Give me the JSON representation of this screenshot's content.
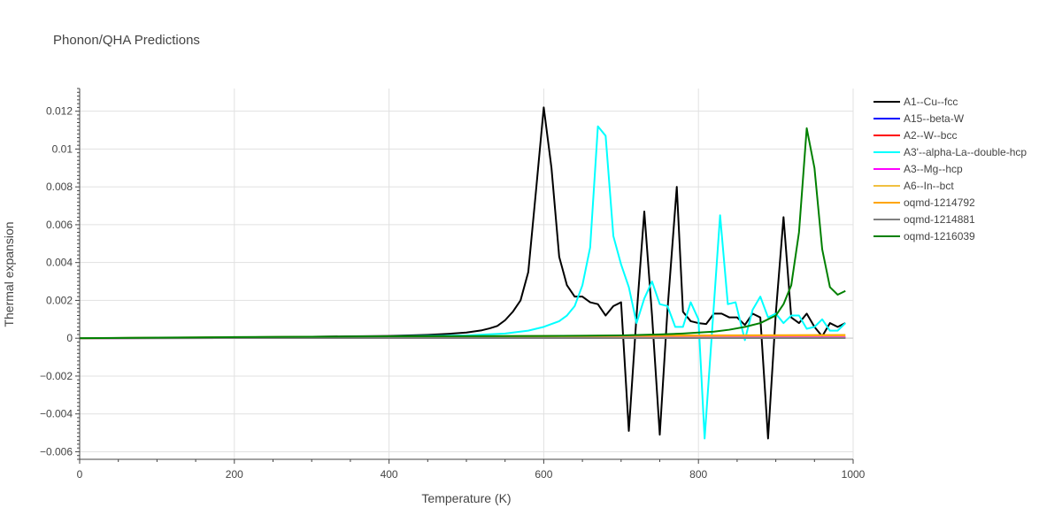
{
  "chart_data": {
    "type": "line",
    "title": "Phonon/QHA Predictions",
    "xlabel": "Temperature (K)",
    "ylabel": "Thermal expansion",
    "xlim": [
      0,
      1000
    ],
    "ylim": [
      -0.0064,
      0.0132
    ],
    "x_ticks": [
      0,
      200,
      400,
      600,
      800,
      1000
    ],
    "x_tick_labels": [
      "0",
      "200",
      "400",
      "600",
      "800",
      "1000"
    ],
    "y_ticks": [
      -0.006,
      -0.004,
      -0.002,
      0,
      0.002,
      0.004,
      0.006,
      0.008,
      0.01,
      0.012
    ],
    "y_tick_labels": [
      "−0.006",
      "−0.004",
      "−0.002",
      "0",
      "0.002",
      "0.004",
      "0.006",
      "0.008",
      "0.01",
      "0.012"
    ],
    "grid": true,
    "legend_position": "right",
    "series": [
      {
        "name": "A1--Cu--fcc",
        "color": "#000000",
        "x": [
          0,
          50,
          100,
          150,
          200,
          250,
          300,
          350,
          400,
          450,
          480,
          500,
          520,
          530,
          540,
          550,
          560,
          570,
          580,
          590,
          600,
          610,
          620,
          630,
          640,
          650,
          660,
          670,
          680,
          690,
          700,
          710,
          720,
          730,
          740,
          750,
          760,
          772,
          780,
          790,
          800,
          810,
          820,
          830,
          840,
          850,
          860,
          870,
          880,
          890,
          900,
          910,
          920,
          930,
          940,
          950,
          960,
          970,
          980,
          990
        ],
        "values": [
          0,
          1e-05,
          2e-05,
          3e-05,
          5e-05,
          6e-05,
          8e-05,
          0.0001,
          0.00012,
          0.00018,
          0.00024,
          0.0003,
          0.00042,
          0.00052,
          0.00065,
          0.00095,
          0.0014,
          0.002,
          0.0035,
          0.0078,
          0.0122,
          0.009,
          0.0043,
          0.0028,
          0.0022,
          0.0022,
          0.0019,
          0.0018,
          0.0012,
          0.0017,
          0.0019,
          -0.0049,
          0.0012,
          0.0067,
          0.0012,
          -0.0051,
          0.0015,
          0.008,
          0.0014,
          0.0009,
          0.0008,
          0.00075,
          0.0013,
          0.0013,
          0.0011,
          0.0011,
          0.0007,
          0.0013,
          0.0011,
          -0.0053,
          0.0013,
          0.0064,
          0.0011,
          0.0008,
          0.0013,
          0.0006,
          0.0001,
          0.0008,
          0.0006,
          0.0008
        ]
      },
      {
        "name": "A15--beta-W",
        "color": "#0000ff",
        "x": [
          0,
          200,
          400,
          600,
          800,
          990
        ],
        "values": [
          0,
          1e-05,
          2e-05,
          3e-05,
          3e-05,
          3e-05
        ]
      },
      {
        "name": "A2--W--bcc",
        "color": "#ff0000",
        "x": [
          0,
          200,
          400,
          600,
          800,
          990
        ],
        "values": [
          0,
          1e-05,
          2e-05,
          2e-05,
          3e-05,
          3e-05
        ]
      },
      {
        "name": "A3'--alpha-La--double-hcp",
        "color": "#00ffff",
        "x": [
          0,
          100,
          200,
          300,
          400,
          500,
          550,
          580,
          600,
          620,
          630,
          640,
          650,
          660,
          670,
          680,
          690,
          700,
          710,
          720,
          730,
          740,
          750,
          760,
          770,
          780,
          790,
          800,
          808,
          818,
          828,
          838,
          848,
          860,
          870,
          880,
          890,
          900,
          910,
          920,
          930,
          940,
          950,
          960,
          970,
          980,
          990
        ],
        "values": [
          0,
          2e-05,
          4e-05,
          7e-05,
          0.0001,
          0.00015,
          0.00025,
          0.0004,
          0.0006,
          0.0009,
          0.0012,
          0.0017,
          0.0028,
          0.0048,
          0.0112,
          0.0107,
          0.0054,
          0.0039,
          0.0027,
          0.0008,
          0.0021,
          0.003,
          0.0018,
          0.0017,
          0.0006,
          0.0006,
          0.0019,
          0.001,
          -0.0053,
          0.0006,
          0.0065,
          0.0018,
          0.0019,
          -0.0001,
          0.0015,
          0.0022,
          0.0011,
          0.0013,
          0.0008,
          0.0012,
          0.0012,
          0.0005,
          0.0006,
          0.001,
          0.0004,
          0.0004,
          0.0008
        ]
      },
      {
        "name": "A3--Mg--hcp",
        "color": "#ff00ff",
        "x": [
          0,
          200,
          400,
          600,
          800,
          990
        ],
        "values": [
          0,
          2e-05,
          3e-05,
          4e-05,
          5e-05,
          5e-05
        ]
      },
      {
        "name": "A6--In--bct",
        "color": "#f0c040",
        "x": [
          0,
          200,
          400,
          600,
          800,
          990
        ],
        "values": [
          0,
          4e-05,
          7e-05,
          0.0001,
          0.00012,
          0.00014
        ]
      },
      {
        "name": "oqmd-1214792",
        "color": "#ffa500",
        "x": [
          0,
          200,
          400,
          600,
          800,
          990
        ],
        "values": [
          0,
          5e-05,
          9e-05,
          0.00012,
          0.00015,
          0.00017
        ]
      },
      {
        "name": "oqmd-1214881",
        "color": "#808080",
        "x": [
          0,
          200,
          400,
          600,
          800,
          990
        ],
        "values": [
          0,
          1e-05,
          1e-05,
          1e-05,
          1e-05,
          1e-05
        ]
      },
      {
        "name": "oqmd-1216039",
        "color": "#008000",
        "x": [
          0,
          100,
          200,
          300,
          400,
          500,
          600,
          650,
          700,
          750,
          780,
          800,
          820,
          840,
          860,
          880,
          900,
          910,
          920,
          930,
          940,
          950,
          960,
          970,
          980,
          990
        ],
        "values": [
          0,
          3e-05,
          6e-05,
          8e-05,
          0.0001,
          0.00011,
          0.00012,
          0.00013,
          0.00015,
          0.0002,
          0.00025,
          0.0003,
          0.00035,
          0.00045,
          0.0006,
          0.0008,
          0.0012,
          0.0018,
          0.0028,
          0.0056,
          0.0111,
          0.009,
          0.0047,
          0.0027,
          0.0023,
          0.0025
        ]
      }
    ]
  }
}
